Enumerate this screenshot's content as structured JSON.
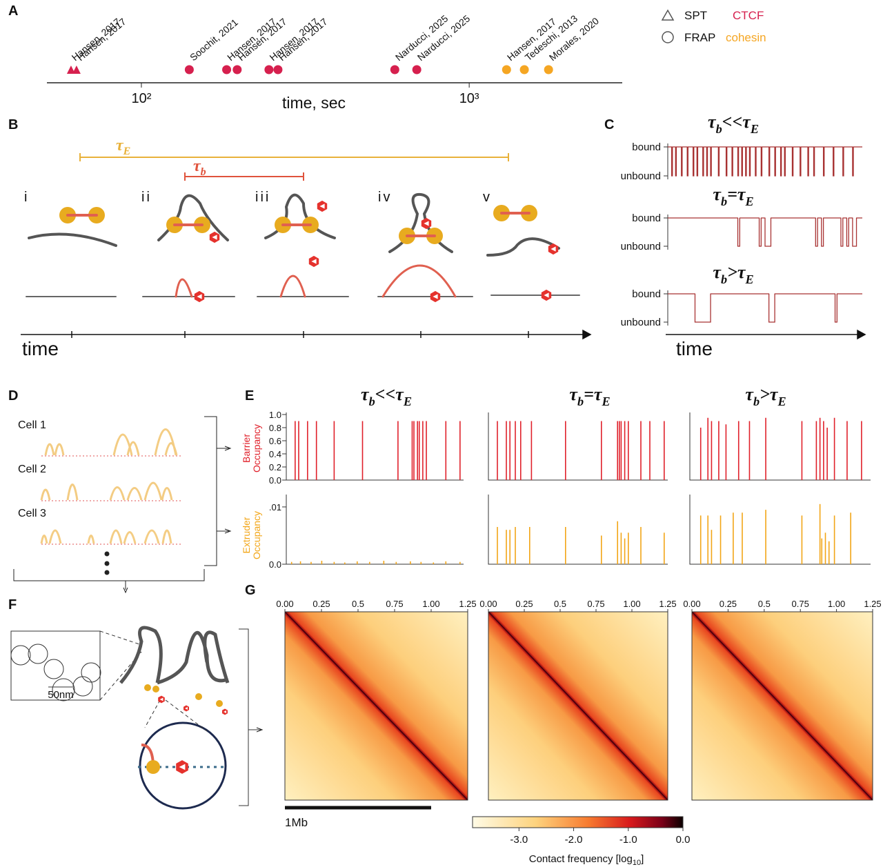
{
  "panel_labels": [
    "A",
    "B",
    "C",
    "D",
    "E",
    "F",
    "G"
  ],
  "panel_a": {
    "type": "scatter",
    "xlabel": "time, sec",
    "log_x": true,
    "xlim": [
      51.5,
      2930
    ],
    "xticks": [
      {
        "value": 100,
        "label": "10²"
      },
      {
        "value": 1000,
        "label": "10³"
      }
    ],
    "methods": [
      {
        "name": "SPT",
        "marker": "triangle"
      },
      {
        "name": "FRAP",
        "marker": "circle"
      }
    ],
    "series": [
      {
        "name": "CTCF",
        "color": "#d6204e",
        "x": [
          61,
          63.4,
          140,
          182,
          196,
          245,
          261,
          593,
          692
        ],
        "method": [
          "SPT",
          "SPT",
          "FRAP",
          "FRAP",
          "FRAP",
          "FRAP",
          "FRAP",
          "FRAP",
          "FRAP"
        ],
        "labels": [
          "Hansen, 2017",
          "Hansen, 2017",
          "Soochit, 2021",
          "Hansen, 2017",
          "Hansen, 2017",
          "Hansen, 2017",
          "Hansen, 2017",
          "Narducci, 2025",
          "Narducci, 2025"
        ]
      },
      {
        "name": "cohesin",
        "color": "#f5a623",
        "x": [
          1300,
          1473,
          1746
        ],
        "method": [
          "FRAP",
          "FRAP",
          "FRAP"
        ],
        "labels": [
          "Hansen, 2017",
          "Tedeschi, 2013",
          "Morales, 2020"
        ]
      }
    ]
  },
  "panel_b": {
    "tau_e": {
      "symbol": "τ",
      "sub": "E"
    },
    "tau_b": {
      "symbol": "τ",
      "sub": "b"
    },
    "stages": [
      "i",
      "ii",
      "iii",
      "iv",
      "v"
    ],
    "xlabel": "time"
  },
  "titles": [
    {
      "parts": [
        "τ",
        "b",
        "<<",
        "τ",
        "E"
      ],
      "sub": [
        false,
        true,
        false,
        false,
        true
      ]
    },
    {
      "parts": [
        "τ",
        "b",
        "=",
        "τ",
        "E"
      ],
      "sub": [
        false,
        true,
        false,
        false,
        true
      ]
    },
    {
      "parts": [
        "τ",
        "b",
        ">",
        "τ",
        "E"
      ],
      "sub": [
        false,
        true,
        false,
        false,
        true
      ]
    }
  ],
  "panel_c": {
    "bound": "bound",
    "unbound": "unbound",
    "xlabel": "time",
    "traces": [
      {
        "dips": [
          [
            0.02,
            0.024
          ],
          [
            0.04,
            0.044
          ],
          [
            0.07,
            0.074
          ],
          [
            0.1,
            0.104
          ],
          [
            0.13,
            0.134
          ],
          [
            0.15,
            0.154
          ],
          [
            0.18,
            0.184
          ],
          [
            0.2,
            0.204
          ],
          [
            0.22,
            0.224
          ],
          [
            0.26,
            0.264
          ],
          [
            0.3,
            0.304
          ],
          [
            0.33,
            0.334
          ],
          [
            0.36,
            0.364
          ],
          [
            0.38,
            0.384
          ],
          [
            0.4,
            0.404
          ],
          [
            0.42,
            0.424
          ],
          [
            0.45,
            0.454
          ],
          [
            0.48,
            0.484
          ],
          [
            0.52,
            0.524
          ],
          [
            0.55,
            0.554
          ],
          [
            0.58,
            0.584
          ],
          [
            0.6,
            0.604
          ],
          [
            0.64,
            0.644
          ],
          [
            0.68,
            0.684
          ],
          [
            0.72,
            0.724
          ],
          [
            0.75,
            0.754
          ],
          [
            0.8,
            0.804
          ],
          [
            0.85,
            0.854
          ],
          [
            0.9,
            0.904
          ],
          [
            0.95,
            0.954
          ]
        ]
      },
      {
        "dips": [
          [
            0.36,
            0.37
          ],
          [
            0.47,
            0.48
          ],
          [
            0.5,
            0.53
          ],
          [
            0.76,
            0.77
          ],
          [
            0.79,
            0.8
          ],
          [
            0.89,
            0.9
          ],
          [
            0.92,
            0.93
          ],
          [
            0.95,
            0.97
          ]
        ]
      },
      {
        "dips": [
          [
            0.14,
            0.22
          ],
          [
            0.52,
            0.55
          ],
          [
            0.86,
            0.87
          ]
        ]
      }
    ]
  },
  "panel_d": {
    "cells": [
      "Cell 1",
      "Cell 2",
      "Cell 3"
    ]
  },
  "panel_e": {
    "barrier_label": [
      "Barrier",
      "Occupancy"
    ],
    "extruder_label": [
      "Extruder",
      "Occupancy"
    ],
    "barrier_ylim": [
      0,
      1.0
    ],
    "barrier_yticks": [
      {
        "value": 0,
        "label": "0.0"
      },
      {
        "value": 0.2,
        "label": "0.2"
      },
      {
        "value": 0.4,
        "label": "0.4"
      },
      {
        "value": 0.6,
        "label": "0.6"
      },
      {
        "value": 0.8,
        "label": "0.8"
      },
      {
        "value": 1.0,
        "label": "1.0"
      }
    ],
    "extruder_ylim": [
      0,
      0.0118
    ],
    "extruder_yticks": [
      {
        "value": 0,
        "label": "0.0"
      },
      {
        "value": 0.01,
        "label": ".01"
      }
    ],
    "columns": [
      {
        "barrier": {
          "x": [
            0.05,
            0.07,
            0.12,
            0.17,
            0.27,
            0.43,
            0.63,
            0.71,
            0.72,
            0.74,
            0.75,
            0.77,
            0.79,
            0.9,
            0.98
          ],
          "values": [
            0.9,
            0.9,
            0.9,
            0.9,
            0.9,
            0.9,
            0.9,
            0.9,
            0.9,
            0.9,
            0.9,
            0.9,
            0.9,
            0.9,
            0.9
          ]
        },
        "extruder": {
          "x": [
            0.03,
            0.08,
            0.14,
            0.2,
            0.27,
            0.33,
            0.4,
            0.47,
            0.55,
            0.62,
            0.7,
            0.76,
            0.83,
            0.9,
            0.98
          ],
          "values": [
            0.0004,
            0.0005,
            0.0004,
            0.0006,
            0.0004,
            0.0003,
            0.0005,
            0.0004,
            0.0006,
            0.0004,
            0.0005,
            0.0004,
            0.0003,
            0.0005,
            0.0004
          ]
        }
      },
      {
        "barrier": {
          "x": [
            0.05,
            0.1,
            0.12,
            0.15,
            0.18,
            0.24,
            0.43,
            0.63,
            0.72,
            0.73,
            0.74,
            0.76,
            0.78,
            0.85,
            0.9,
            0.98
          ],
          "values": [
            0.9,
            0.9,
            0.9,
            0.9,
            0.9,
            0.9,
            0.9,
            0.9,
            0.9,
            0.9,
            0.9,
            0.9,
            0.9,
            0.9,
            0.9,
            0.9
          ]
        },
        "extruder": {
          "x": [
            0.05,
            0.1,
            0.12,
            0.15,
            0.23,
            0.43,
            0.63,
            0.72,
            0.74,
            0.76,
            0.78,
            0.85,
            0.98
          ],
          "values": [
            0.0065,
            0.006,
            0.006,
            0.0065,
            0.0065,
            0.0065,
            0.005,
            0.0075,
            0.0055,
            0.0045,
            0.0055,
            0.0065,
            0.0055
          ]
        }
      },
      {
        "barrier": {
          "x": [
            0.06,
            0.1,
            0.12,
            0.16,
            0.2,
            0.27,
            0.33,
            0.42,
            0.62,
            0.7,
            0.72,
            0.74,
            0.76,
            0.8,
            0.87,
            0.95
          ],
          "values": [
            0.8,
            0.95,
            0.9,
            0.9,
            0.85,
            0.9,
            0.9,
            0.95,
            0.9,
            0.9,
            0.95,
            0.9,
            0.8,
            0.95,
            0.9,
            0.9
          ]
        },
        "extruder": {
          "x": [
            0.06,
            0.1,
            0.12,
            0.17,
            0.24,
            0.29,
            0.42,
            0.62,
            0.72,
            0.73,
            0.75,
            0.77,
            0.8,
            0.89
          ],
          "values": [
            0.0085,
            0.0085,
            0.006,
            0.0085,
            0.009,
            0.009,
            0.0095,
            0.0085,
            0.0105,
            0.0045,
            0.0055,
            0.004,
            0.0085,
            0.009
          ]
        }
      }
    ]
  },
  "panel_f": {
    "scale": "50nm"
  },
  "panel_g": {
    "xlim": [
      0,
      1.25
    ],
    "xticks": [
      {
        "value": 0,
        "label": "0.00"
      },
      0.25,
      0.5,
      0.75,
      {
        "value": 1,
        "label": "1.00"
      },
      1.25
    ],
    "scalebar": {
      "value": 1,
      "label": "1Mb"
    },
    "clim": [
      -3.85,
      0
    ],
    "cticks": [
      {
        "value": -3,
        "label": "-3.0"
      },
      {
        "value": -2,
        "label": "-2.0"
      },
      {
        "value": -1,
        "label": "-1.0"
      },
      {
        "value": 0,
        "label": "0.0"
      }
    ],
    "clabel": {
      "text": "Contact frequency [log",
      "sub": "10",
      "end": "]"
    }
  }
}
